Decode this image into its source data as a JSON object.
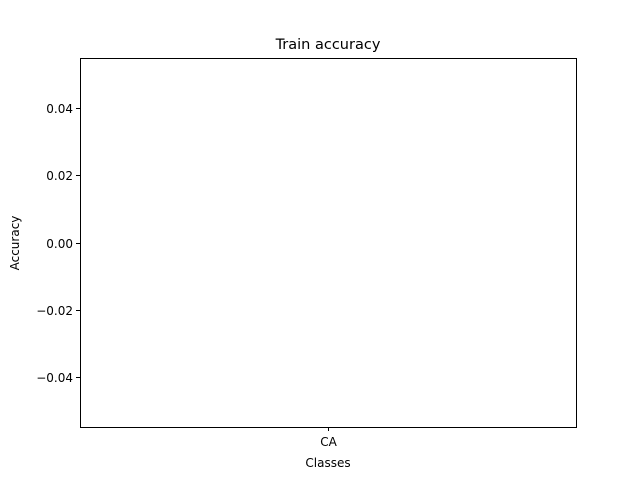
{
  "chart_data": {
    "type": "bar",
    "title": "Train accuracy",
    "xlabel": "Classes",
    "ylabel": "Accuracy",
    "categories": [
      "CA"
    ],
    "values": [
      0.0
    ],
    "ylim": [
      -0.055,
      0.055
    ],
    "yticks": [
      0.04,
      0.02,
      0.0,
      -0.02,
      -0.04
    ],
    "ytick_labels": [
      "0.04",
      "0.02",
      "0.00",
      "−0.02",
      "−0.04"
    ],
    "grid": false,
    "legend": "none"
  }
}
